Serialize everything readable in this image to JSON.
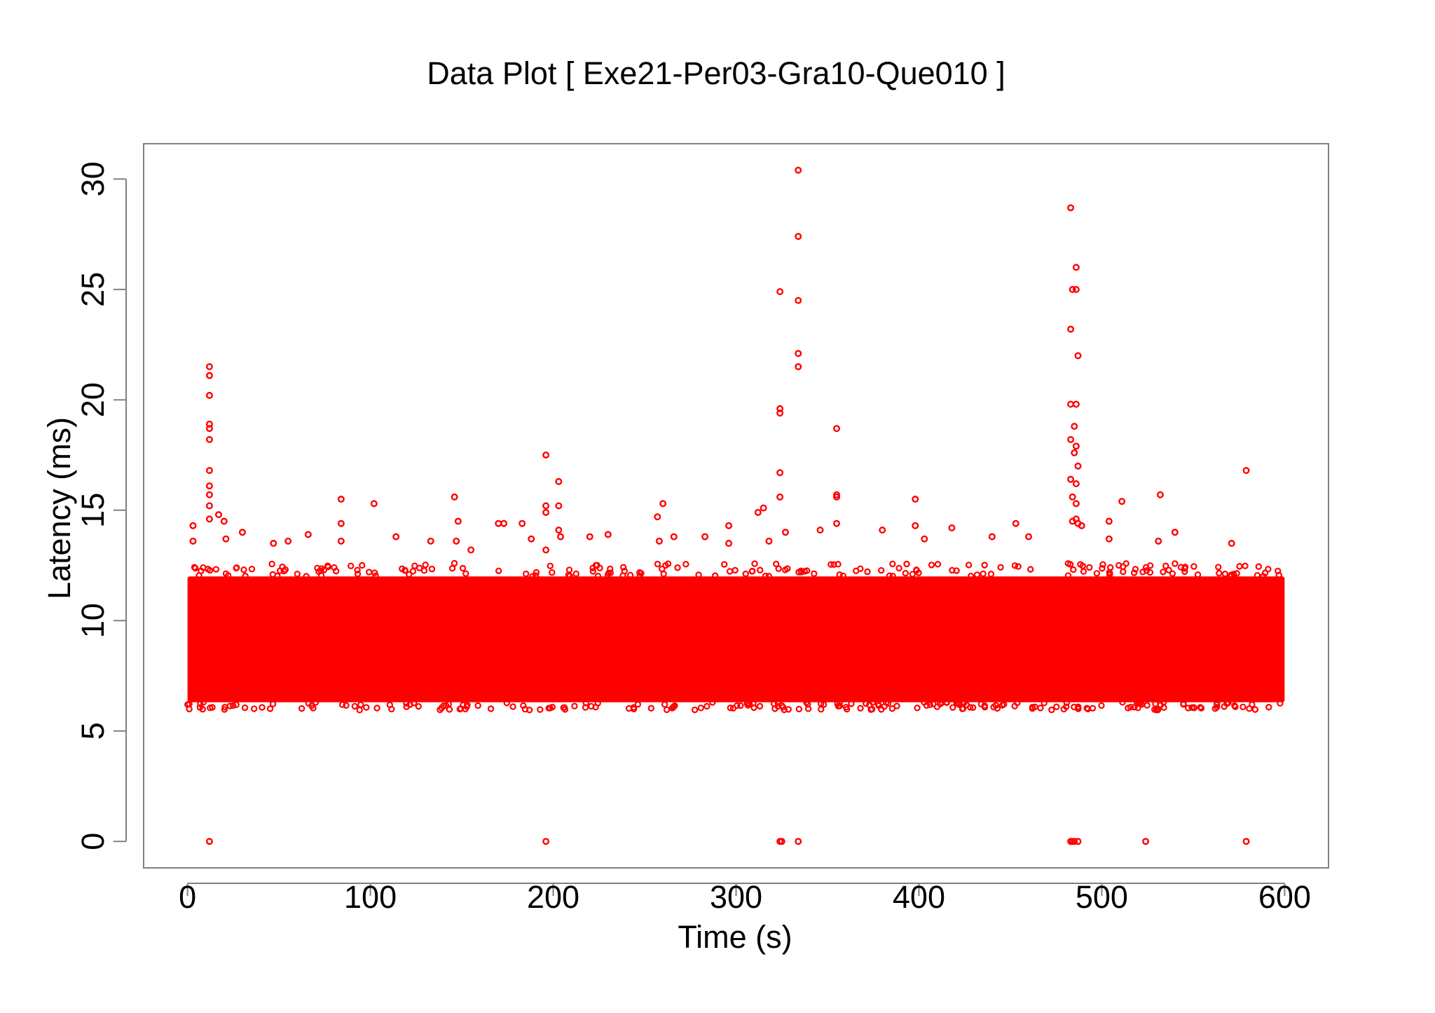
{
  "chart_data": {
    "type": "scatter",
    "title": "Data Plot [ Exe21-Per03-Gra10-Que010 ]",
    "xlabel": "Time (s)",
    "ylabel": "Latency (ms)",
    "xlim": [
      -24,
      624
    ],
    "ylim": [
      -1.2,
      31.6
    ],
    "xticks": [
      0,
      100,
      200,
      300,
      400,
      500,
      600
    ],
    "yticks": [
      0,
      5,
      10,
      15,
      20,
      25,
      30
    ],
    "grid": false,
    "legend": "none",
    "series": [
      {
        "color": "#ff0000",
        "marker": "open-circle",
        "dense_band": {
          "x_range": [
            0,
            600
          ],
          "y_range": [
            6.3,
            12.0
          ]
        },
        "points": [
          {
            "x": 12,
            "y": 21.5
          },
          {
            "x": 12,
            "y": 21.1
          },
          {
            "x": 12,
            "y": 20.2
          },
          {
            "x": 12,
            "y": 18.9
          },
          {
            "x": 12,
            "y": 18.7
          },
          {
            "x": 12,
            "y": 18.2
          },
          {
            "x": 12,
            "y": 16.8
          },
          {
            "x": 12,
            "y": 16.1
          },
          {
            "x": 12,
            "y": 15.7
          },
          {
            "x": 12,
            "y": 15.2
          },
          {
            "x": 12,
            "y": 14.6
          },
          {
            "x": 17,
            "y": 14.8
          },
          {
            "x": 20,
            "y": 14.5
          },
          {
            "x": 3,
            "y": 14.3
          },
          {
            "x": 3,
            "y": 13.6
          },
          {
            "x": 21,
            "y": 13.7
          },
          {
            "x": 30,
            "y": 14.0
          },
          {
            "x": 47,
            "y": 13.5
          },
          {
            "x": 55,
            "y": 13.6
          },
          {
            "x": 66,
            "y": 13.9
          },
          {
            "x": 84,
            "y": 15.5
          },
          {
            "x": 84,
            "y": 14.4
          },
          {
            "x": 84,
            "y": 13.6
          },
          {
            "x": 102,
            "y": 15.3
          },
          {
            "x": 114,
            "y": 13.8
          },
          {
            "x": 133,
            "y": 13.6
          },
          {
            "x": 146,
            "y": 15.6
          },
          {
            "x": 148,
            "y": 14.5
          },
          {
            "x": 147,
            "y": 13.6
          },
          {
            "x": 155,
            "y": 13.2
          },
          {
            "x": 170,
            "y": 14.4
          },
          {
            "x": 173,
            "y": 14.4
          },
          {
            "x": 183,
            "y": 14.4
          },
          {
            "x": 188,
            "y": 13.7
          },
          {
            "x": 196,
            "y": 17.5
          },
          {
            "x": 196,
            "y": 15.2
          },
          {
            "x": 196,
            "y": 14.9
          },
          {
            "x": 196,
            "y": 13.2
          },
          {
            "x": 203,
            "y": 16.3
          },
          {
            "x": 203,
            "y": 15.2
          },
          {
            "x": 203,
            "y": 14.1
          },
          {
            "x": 204,
            "y": 13.8
          },
          {
            "x": 220,
            "y": 13.8
          },
          {
            "x": 230,
            "y": 13.9
          },
          {
            "x": 257,
            "y": 14.7
          },
          {
            "x": 260,
            "y": 15.3
          },
          {
            "x": 258,
            "y": 13.6
          },
          {
            "x": 266,
            "y": 13.8
          },
          {
            "x": 283,
            "y": 13.8
          },
          {
            "x": 296,
            "y": 14.3
          },
          {
            "x": 296,
            "y": 13.5
          },
          {
            "x": 312,
            "y": 14.9
          },
          {
            "x": 315,
            "y": 15.1
          },
          {
            "x": 318,
            "y": 13.6
          },
          {
            "x": 324,
            "y": 24.9
          },
          {
            "x": 324,
            "y": 19.6
          },
          {
            "x": 324,
            "y": 19.4
          },
          {
            "x": 324,
            "y": 16.7
          },
          {
            "x": 324,
            "y": 15.6
          },
          {
            "x": 327,
            "y": 14.0
          },
          {
            "x": 334,
            "y": 30.4
          },
          {
            "x": 334,
            "y": 27.4
          },
          {
            "x": 334,
            "y": 24.5
          },
          {
            "x": 334,
            "y": 22.1
          },
          {
            "x": 334,
            "y": 21.5
          },
          {
            "x": 346,
            "y": 14.1
          },
          {
            "x": 355,
            "y": 18.7
          },
          {
            "x": 355,
            "y": 15.7
          },
          {
            "x": 355,
            "y": 15.6
          },
          {
            "x": 355,
            "y": 14.4
          },
          {
            "x": 380,
            "y": 14.1
          },
          {
            "x": 398,
            "y": 15.5
          },
          {
            "x": 398,
            "y": 14.3
          },
          {
            "x": 403,
            "y": 13.7
          },
          {
            "x": 418,
            "y": 14.2
          },
          {
            "x": 440,
            "y": 13.8
          },
          {
            "x": 453,
            "y": 14.4
          },
          {
            "x": 460,
            "y": 13.8
          },
          {
            "x": 483,
            "y": 28.7
          },
          {
            "x": 486,
            "y": 26.0
          },
          {
            "x": 484,
            "y": 25.0
          },
          {
            "x": 486,
            "y": 25.0
          },
          {
            "x": 483,
            "y": 23.2
          },
          {
            "x": 487,
            "y": 22.0
          },
          {
            "x": 483,
            "y": 19.8
          },
          {
            "x": 486,
            "y": 19.8
          },
          {
            "x": 485,
            "y": 18.8
          },
          {
            "x": 483,
            "y": 18.2
          },
          {
            "x": 486,
            "y": 17.9
          },
          {
            "x": 485,
            "y": 17.6
          },
          {
            "x": 487,
            "y": 17.0
          },
          {
            "x": 483,
            "y": 16.4
          },
          {
            "x": 486,
            "y": 16.2
          },
          {
            "x": 484,
            "y": 15.6
          },
          {
            "x": 486,
            "y": 15.3
          },
          {
            "x": 484,
            "y": 14.5
          },
          {
            "x": 487,
            "y": 14.4
          },
          {
            "x": 489,
            "y": 14.3
          },
          {
            "x": 486,
            "y": 14.6
          },
          {
            "x": 504,
            "y": 14.5
          },
          {
            "x": 504,
            "y": 13.7
          },
          {
            "x": 511,
            "y": 15.4
          },
          {
            "x": 532,
            "y": 15.7
          },
          {
            "x": 540,
            "y": 14.0
          },
          {
            "x": 531,
            "y": 13.6
          },
          {
            "x": 579,
            "y": 16.8
          },
          {
            "x": 571,
            "y": 13.5
          },
          {
            "x": 12,
            "y": 0
          },
          {
            "x": 196,
            "y": 0
          },
          {
            "x": 324,
            "y": 0
          },
          {
            "x": 325,
            "y": 0
          },
          {
            "x": 334,
            "y": 0
          },
          {
            "x": 483,
            "y": 0
          },
          {
            "x": 484,
            "y": 0
          },
          {
            "x": 485,
            "y": 0
          },
          {
            "x": 487,
            "y": 0
          },
          {
            "x": 524,
            "y": 0
          },
          {
            "x": 579,
            "y": 0
          }
        ]
      }
    ]
  }
}
